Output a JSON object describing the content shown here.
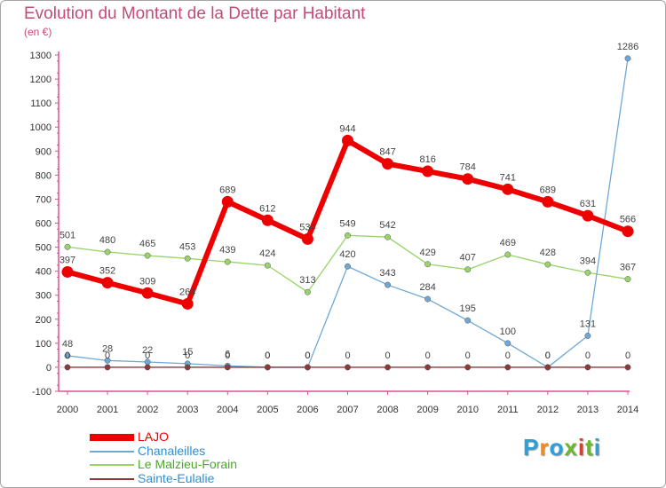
{
  "title": "Evolution du Montant de la Dette par Habitant",
  "unit_label": "(en €)",
  "brand": {
    "text": "Proxiti",
    "colors": [
      "#2f9fd8",
      "#f28c1e",
      "#2f9fd8",
      "#6bb82d",
      "#e8392b",
      "#6bb82d",
      "#2f9fd8"
    ]
  },
  "chart_data": {
    "type": "line",
    "title": "Evolution du Montant de la Dette par Habitant",
    "ylabel": "(en €)",
    "xlabel": "",
    "x": [
      "2000",
      "2001",
      "2002",
      "2003",
      "2004",
      "2005",
      "2006",
      "2007",
      "2008",
      "2009",
      "2010",
      "2011",
      "2012",
      "2013",
      "2014"
    ],
    "ylim": [
      -100,
      1300
    ],
    "yticks": [
      -100,
      0,
      100,
      200,
      300,
      400,
      500,
      600,
      700,
      800,
      900,
      1000,
      1100,
      1200,
      1300
    ],
    "grid": false,
    "legend_position": "bottom-left",
    "series": [
      {
        "name": "LAJO",
        "color": "#ee0000",
        "values": [
          397,
          352,
          309,
          264,
          689,
          612,
          534,
          944,
          847,
          816,
          784,
          741,
          689,
          631,
          566
        ],
        "labels": [
          "397",
          "352",
          "309",
          "264",
          "689",
          "612",
          "534",
          "944",
          "847",
          "816",
          "784",
          "741",
          "689",
          "631",
          "566"
        ]
      },
      {
        "name": "Chanaleilles",
        "color": "#6fa8d6",
        "values": [
          48,
          28,
          22,
          15,
          6,
          0,
          0,
          420,
          343,
          284,
          195,
          100,
          0,
          131,
          1286
        ],
        "labels": [
          "48",
          "28",
          "22",
          "15",
          "6",
          "0",
          "0",
          "420",
          "343",
          "284",
          "195",
          "100",
          "0",
          "131",
          "1286"
        ]
      },
      {
        "name": "Le Malzieu-Forain",
        "color": "#99d36a",
        "values": [
          501,
          480,
          465,
          453,
          439,
          424,
          313,
          549,
          542,
          429,
          407,
          469,
          428,
          394,
          367
        ],
        "labels": [
          "501",
          "480",
          "465",
          "453",
          "439",
          "424",
          "313",
          "549",
          "542",
          "429",
          "407",
          "469",
          "428",
          "394",
          "367"
        ]
      },
      {
        "name": "Sainte-Eulalie",
        "color": "#8b3a3a",
        "values": [
          0,
          0,
          0,
          0,
          0,
          0,
          0,
          0,
          0,
          0,
          0,
          0,
          0,
          0,
          0
        ],
        "labels": [
          "0",
          "0",
          "0",
          "0",
          "0",
          "0",
          "0",
          "0",
          "0",
          "0",
          "0",
          "0",
          "0",
          "0",
          "0"
        ]
      }
    ]
  },
  "legend": [
    {
      "label": "LAJO",
      "color": "#ee0000",
      "text_color": "#ee0000"
    },
    {
      "label": "Chanaleilles",
      "color": "#6fa8d6",
      "text_color": "#2f8fd0"
    },
    {
      "label": "Le Malzieu-Forain",
      "color": "#99d36a",
      "text_color": "#4aa92a"
    },
    {
      "label": "Sainte-Eulalie",
      "color": "#8b3a3a",
      "text_color": "#2f8fd0"
    }
  ]
}
